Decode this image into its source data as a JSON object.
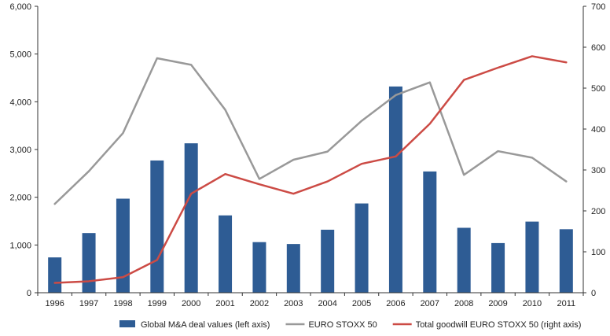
{
  "chart_data": {
    "type": "bar",
    "categories": [
      "1996",
      "1997",
      "1998",
      "1999",
      "2000",
      "2001",
      "2002",
      "2003",
      "2004",
      "2005",
      "2006",
      "2007",
      "2008",
      "2009",
      "2010",
      "2011"
    ],
    "left_axis": {
      "min": 0,
      "max": 6000,
      "ticks": [
        "0",
        "1,000",
        "2,000",
        "3,000",
        "4,000",
        "5,000",
        "6,000"
      ]
    },
    "right_axis": {
      "min": 0,
      "max": 700,
      "ticks": [
        "0",
        "100",
        "200",
        "300",
        "400",
        "500",
        "600",
        "700"
      ]
    },
    "grid": false,
    "legend_position": "bottom",
    "series": [
      {
        "name": "Global M&A deal values (left axis)",
        "kind": "bar",
        "axis": "left",
        "color": "#2e5c94",
        "values": [
          740,
          1250,
          1970,
          2770,
          3130,
          1620,
          1060,
          1020,
          1320,
          1870,
          4320,
          2540,
          1360,
          1040,
          1490,
          1330
        ]
      },
      {
        "name": "EURO STOXX 50",
        "kind": "line",
        "axis": "right",
        "color": "#999999",
        "values": [
          217,
          297,
          390,
          573,
          557,
          447,
          278,
          325,
          345,
          420,
          483,
          514,
          288,
          346,
          330,
          272
        ]
      },
      {
        "name": "Total goodwill EURO STOXX 50 (right axis)",
        "kind": "line",
        "axis": "right",
        "color": "#cc4b45",
        "values": [
          24,
          28,
          38,
          80,
          242,
          290,
          265,
          242,
          272,
          315,
          333,
          413,
          520,
          550,
          578,
          563
        ]
      }
    ]
  }
}
